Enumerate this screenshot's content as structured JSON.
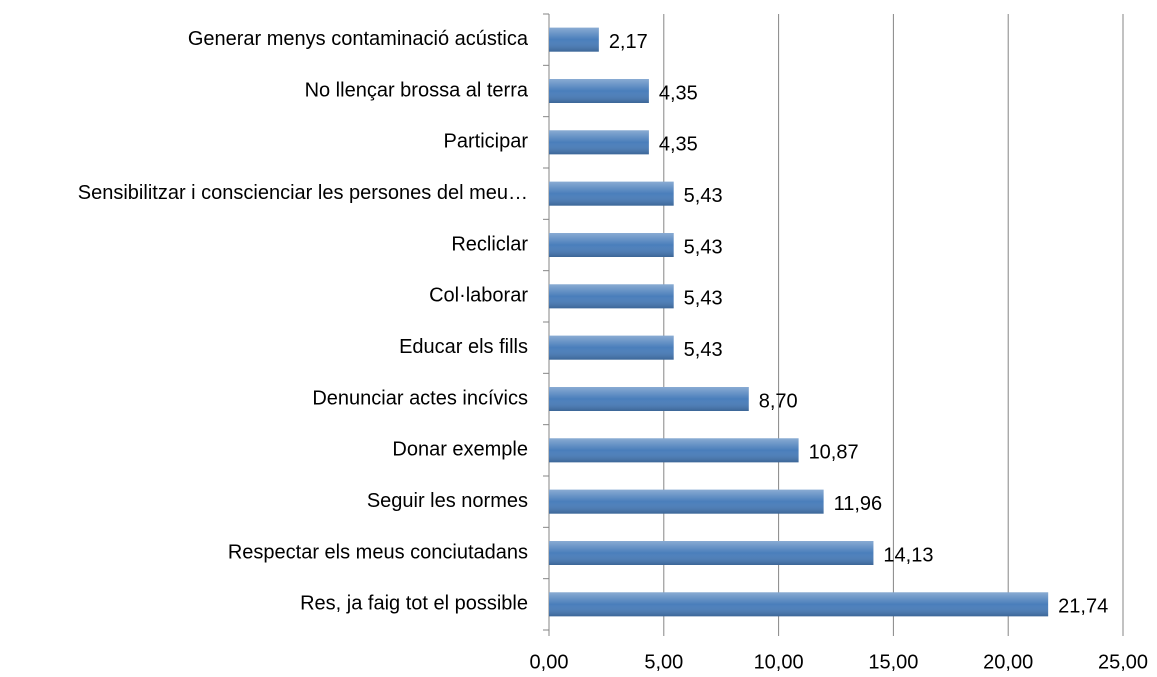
{
  "chart_data": {
    "type": "bar",
    "orientation": "horizontal",
    "categories": [
      "Generar menys contaminació acústica",
      "No llençar brossa al terra",
      "Participar",
      "Sensibilitzar i conscienciar les persones del meu…",
      "Recliclar",
      "Col·laborar",
      "Educar els fills",
      "Denunciar actes incívics",
      "Donar exemple",
      "Seguir les normes",
      "Respectar els meus conciutadans",
      "Res, ja faig tot el possible"
    ],
    "values": [
      2.17,
      4.35,
      4.35,
      5.43,
      5.43,
      5.43,
      5.43,
      8.7,
      10.87,
      11.96,
      14.13,
      21.74
    ],
    "value_labels": [
      "2,17",
      "4,35",
      "4,35",
      "5,43",
      "5,43",
      "5,43",
      "5,43",
      "8,70",
      "10,87",
      "11,96",
      "14,13",
      "21,74"
    ],
    "color": "#4a7ebb",
    "xlim": [
      0,
      25
    ],
    "xticks": [
      {
        "value": 0,
        "label": "0,00"
      },
      {
        "value": 5,
        "label": "5,00"
      },
      {
        "value": 10,
        "label": "10,00"
      },
      {
        "value": 15,
        "label": "15,00"
      },
      {
        "value": 20,
        "label": "20,00"
      },
      {
        "value": 25,
        "label": "25,00"
      }
    ],
    "grid": true
  }
}
